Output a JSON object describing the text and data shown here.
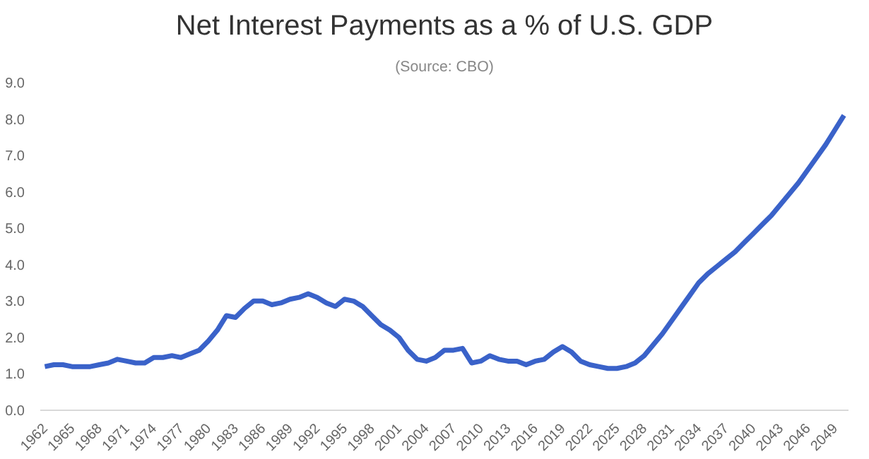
{
  "chart_data": {
    "type": "line",
    "title": "Net Interest Payments as a % of U.S. GDP",
    "subtitle": "(Source: CBO)",
    "x": [
      1962,
      1963,
      1964,
      1965,
      1966,
      1967,
      1968,
      1969,
      1970,
      1971,
      1972,
      1973,
      1974,
      1975,
      1976,
      1977,
      1978,
      1979,
      1980,
      1981,
      1982,
      1983,
      1984,
      1985,
      1986,
      1987,
      1988,
      1989,
      1990,
      1991,
      1992,
      1993,
      1994,
      1995,
      1996,
      1997,
      1998,
      1999,
      2000,
      2001,
      2002,
      2003,
      2004,
      2005,
      2006,
      2007,
      2008,
      2009,
      2010,
      2011,
      2012,
      2013,
      2014,
      2015,
      2016,
      2017,
      2018,
      2019,
      2020,
      2021,
      2022,
      2023,
      2024,
      2025,
      2026,
      2027,
      2028,
      2029,
      2030,
      2031,
      2032,
      2033,
      2034,
      2035,
      2036,
      2037,
      2038,
      2039,
      2040,
      2041,
      2042,
      2043,
      2044,
      2045,
      2046,
      2047,
      2048,
      2049,
      2050
    ],
    "series": [
      {
        "color": "#3a62c9",
        "values": [
          1.2,
          1.25,
          1.25,
          1.2,
          1.2,
          1.2,
          1.25,
          1.3,
          1.4,
          1.35,
          1.3,
          1.3,
          1.45,
          1.45,
          1.5,
          1.45,
          1.55,
          1.65,
          1.9,
          2.2,
          2.6,
          2.55,
          2.8,
          3.0,
          3.0,
          2.9,
          2.95,
          3.05,
          3.1,
          3.2,
          3.1,
          2.95,
          2.85,
          3.05,
          3.0,
          2.85,
          2.6,
          2.35,
          2.2,
          2.0,
          1.65,
          1.4,
          1.35,
          1.45,
          1.65,
          1.65,
          1.7,
          1.3,
          1.35,
          1.5,
          1.4,
          1.35,
          1.35,
          1.25,
          1.35,
          1.4,
          1.6,
          1.75,
          1.6,
          1.35,
          1.25,
          1.2,
          1.15,
          1.15,
          1.2,
          1.3,
          1.5,
          1.8,
          2.1,
          2.45,
          2.8,
          3.15,
          3.5,
          3.75,
          3.95,
          4.15,
          4.35,
          4.6,
          4.85,
          5.1,
          5.35,
          5.65,
          5.95,
          6.25,
          6.6,
          6.95,
          7.3,
          7.7,
          8.1
        ]
      }
    ],
    "xlim": [
      1961.5,
      2050.5
    ],
    "xticks": [
      1962,
      1965,
      1968,
      1971,
      1974,
      1977,
      1980,
      1983,
      1986,
      1989,
      1992,
      1995,
      1998,
      2001,
      2004,
      2007,
      2010,
      2013,
      2016,
      2019,
      2022,
      2025,
      2028,
      2031,
      2034,
      2037,
      2040,
      2043,
      2046,
      2049
    ],
    "ylim": [
      0,
      9
    ],
    "yticks": [
      {
        "value": 0,
        "label": "0.0"
      },
      {
        "value": 1,
        "label": "1.0"
      },
      {
        "value": 2,
        "label": "2.0"
      },
      {
        "value": 3,
        "label": "3.0"
      },
      {
        "value": 4,
        "label": "4.0"
      },
      {
        "value": 5,
        "label": "5.0"
      },
      {
        "value": 6,
        "label": "6.0"
      },
      {
        "value": 7,
        "label": "7.0"
      },
      {
        "value": 8,
        "label": "8.0"
      },
      {
        "value": 9,
        "label": "9.0"
      }
    ],
    "grid": false,
    "marker": "none",
    "line_style": "solid"
  }
}
